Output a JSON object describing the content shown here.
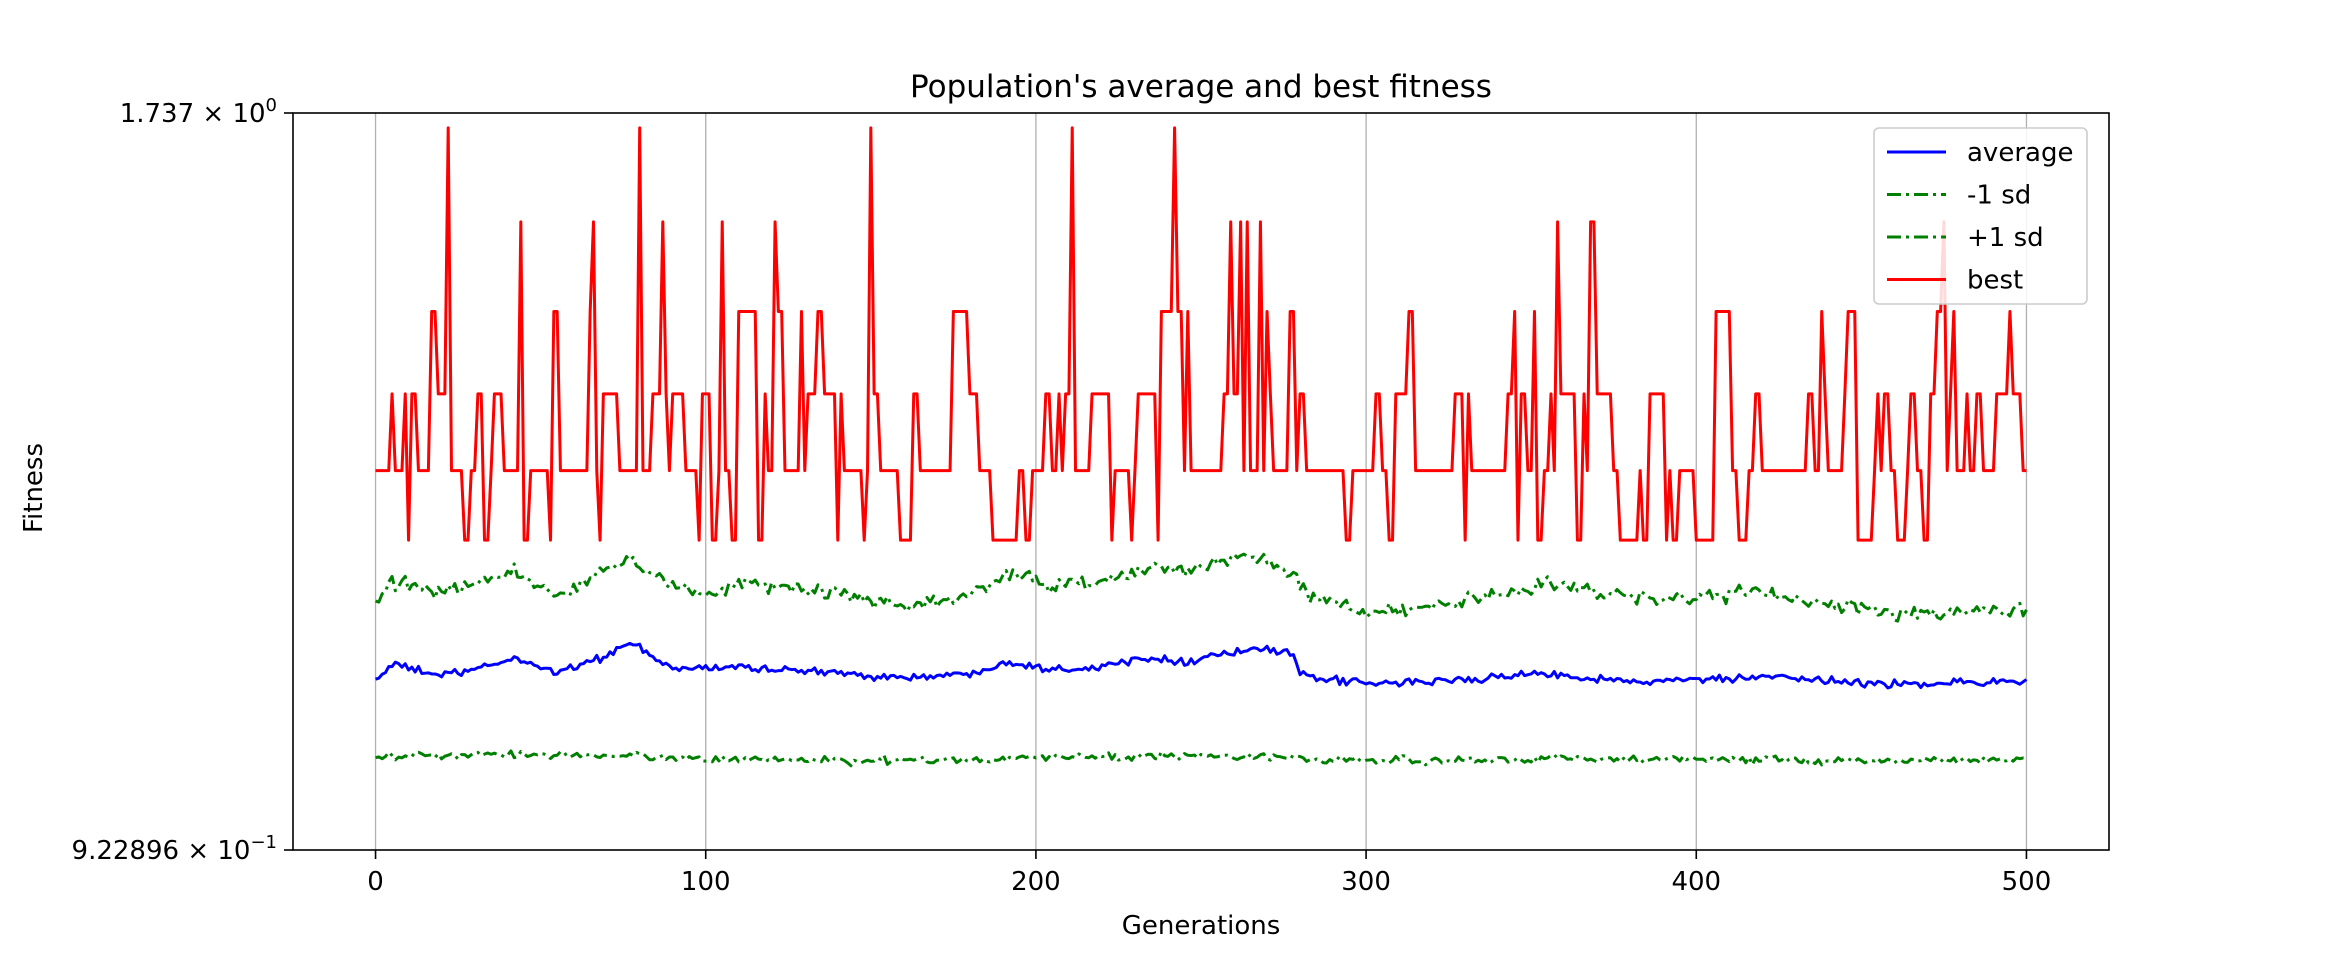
{
  "chart_data": {
    "type": "line",
    "title": "Population's average and best fitness",
    "xlabel": "Generations",
    "ylabel": "Fitness",
    "xlim": [
      -25,
      525
    ],
    "x_ticks": [
      0,
      100,
      200,
      300,
      400,
      500
    ],
    "x_tick_labels": [
      "0",
      "100",
      "200",
      "300",
      "400",
      "500"
    ],
    "y_scale": "log",
    "ylim": [
      0.922896,
      1.737
    ],
    "y_tick_labels": [
      {
        "value": 1.737,
        "mantissa": "1.737",
        "base": "10",
        "exponent": "0"
      },
      {
        "value": 0.922896,
        "mantissa": "9.22896",
        "base": "10",
        "exponent": "−1"
      }
    ],
    "grid": {
      "x": true,
      "y": false
    },
    "legend": {
      "position": "top-right",
      "entries": [
        {
          "label": "average",
          "color": "#0000ff",
          "style": "solid"
        },
        {
          "label": "-1 sd",
          "color": "#008000",
          "style": "dashdot"
        },
        {
          "label": "+1 sd",
          "color": "#008000",
          "style": "dashdot"
        },
        {
          "label": "best",
          "color": "#ff0000",
          "style": "solid"
        }
      ]
    },
    "n_generations": 501,
    "series": [
      {
        "name": "average",
        "color": "#0000ff",
        "style": "solid",
        "keypoints": [
          [
            0,
            1.068
          ],
          [
            5,
            1.082
          ],
          [
            20,
            1.072
          ],
          [
            30,
            1.077
          ],
          [
            42,
            1.088
          ],
          [
            55,
            1.075
          ],
          [
            68,
            1.088
          ],
          [
            77,
            1.102
          ],
          [
            90,
            1.078
          ],
          [
            110,
            1.08
          ],
          [
            130,
            1.076
          ],
          [
            160,
            1.07
          ],
          [
            180,
            1.073
          ],
          [
            190,
            1.085
          ],
          [
            205,
            1.078
          ],
          [
            220,
            1.08
          ],
          [
            235,
            1.09
          ],
          [
            245,
            1.084
          ],
          [
            255,
            1.092
          ],
          [
            270,
            1.097
          ],
          [
            278,
            1.09
          ],
          [
            280,
            1.072
          ],
          [
            300,
            1.064
          ],
          [
            330,
            1.068
          ],
          [
            355,
            1.074
          ],
          [
            380,
            1.066
          ],
          [
            420,
            1.07
          ],
          [
            460,
            1.064
          ],
          [
            500,
            1.067
          ]
        ],
        "noise": 0.005
      },
      {
        "name": "-1 sd",
        "color": "#008000",
        "style": "dashdot",
        "keypoints": [
          [
            0,
            1.0
          ],
          [
            60,
            1.002
          ],
          [
            100,
            0.998
          ],
          [
            150,
            0.996
          ],
          [
            200,
            0.999
          ],
          [
            260,
            1.001
          ],
          [
            300,
            0.996
          ],
          [
            350,
            0.998
          ],
          [
            400,
            0.998
          ],
          [
            450,
            0.996
          ],
          [
            500,
            0.998
          ]
        ],
        "noise": 0.005
      },
      {
        "name": "+1 sd",
        "color": "#008000",
        "style": "dashdot",
        "keypoints": [
          [
            0,
            1.14
          ],
          [
            5,
            1.162
          ],
          [
            20,
            1.15
          ],
          [
            30,
            1.158
          ],
          [
            42,
            1.172
          ],
          [
            55,
            1.148
          ],
          [
            68,
            1.17
          ],
          [
            77,
            1.185
          ],
          [
            90,
            1.16
          ],
          [
            100,
            1.148
          ],
          [
            110,
            1.16
          ],
          [
            130,
            1.155
          ],
          [
            160,
            1.138
          ],
          [
            180,
            1.145
          ],
          [
            190,
            1.172
          ],
          [
            205,
            1.158
          ],
          [
            220,
            1.162
          ],
          [
            235,
            1.178
          ],
          [
            245,
            1.17
          ],
          [
            255,
            1.18
          ],
          [
            267,
            1.19
          ],
          [
            278,
            1.17
          ],
          [
            282,
            1.15
          ],
          [
            300,
            1.13
          ],
          [
            320,
            1.137
          ],
          [
            355,
            1.16
          ],
          [
            380,
            1.145
          ],
          [
            400,
            1.148
          ],
          [
            420,
            1.15
          ],
          [
            460,
            1.13
          ],
          [
            500,
            1.135
          ]
        ],
        "noise": 0.009
      },
      {
        "name": "best",
        "color": "#ff0000",
        "style": "solid",
        "levels": [
          1.204,
          1.278,
          1.365,
          1.465,
          1.582,
          1.715
        ],
        "base_level": 1,
        "noise_level_probs": [
          0.18,
          0.5,
          0.2,
          0.08,
          0.03,
          0.01
        ],
        "peaks": [
          [
            5,
            2
          ],
          [
            10,
            0
          ],
          [
            22,
            5
          ],
          [
            44,
            4
          ],
          [
            66,
            4
          ],
          [
            87,
            4
          ],
          [
            121,
            4
          ],
          [
            150,
            5
          ],
          [
            211,
            5
          ],
          [
            242,
            5
          ],
          [
            259,
            4
          ],
          [
            262,
            4
          ],
          [
            264,
            4
          ],
          [
            268,
            4
          ],
          [
            270,
            3
          ],
          [
            358,
            4
          ],
          [
            475,
            4
          ],
          [
            495,
            3
          ]
        ]
      }
    ]
  }
}
